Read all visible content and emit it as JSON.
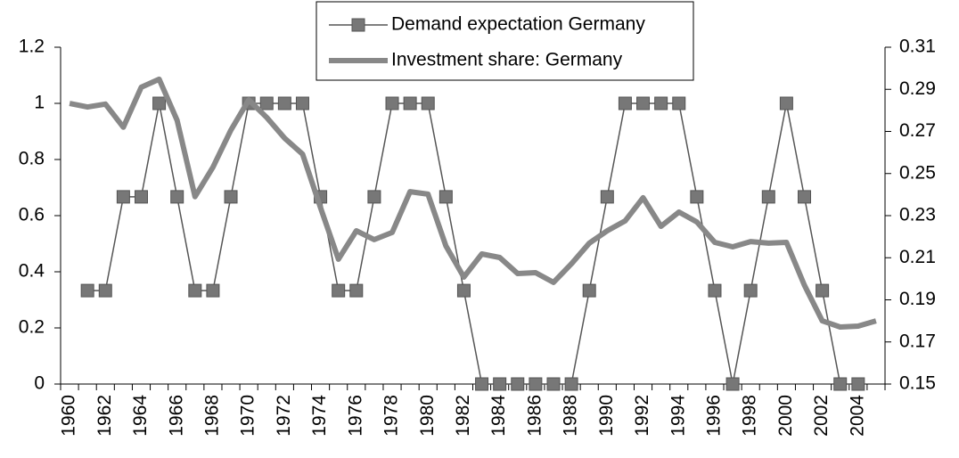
{
  "chart_data": {
    "type": "line",
    "categories": [
      "1960",
      null,
      "1962",
      null,
      "1964",
      null,
      "1966",
      null,
      "1968",
      null,
      "1970",
      null,
      "1972",
      null,
      "1974",
      null,
      "1976",
      null,
      "1978",
      null,
      "1980",
      null,
      "1982",
      null,
      "1984",
      null,
      "1986",
      null,
      "1988",
      null,
      "1990",
      null,
      "1992",
      null,
      "1994",
      null,
      "1996",
      null,
      "1998",
      null,
      "2000",
      null,
      "2002",
      null,
      "2004",
      null
    ],
    "series": [
      {
        "name": "Demand expectation Germany",
        "color": "#555555",
        "marker": "square",
        "values": [
          null,
          0.333,
          0.333,
          0.667,
          0.667,
          1,
          0.667,
          0.333,
          0.333,
          0.667,
          1,
          1,
          1,
          1,
          0.667,
          0.333,
          0.333,
          0.667,
          1,
          1,
          1,
          0.667,
          0.333,
          0,
          0,
          0,
          0,
          0,
          0,
          0.333,
          0.667,
          1,
          1,
          1,
          1,
          0.667,
          0.333,
          0,
          0.333,
          0.667,
          1,
          0.667,
          0.333,
          0,
          0,
          null
        ]
      },
      {
        "name": "Investment share: Germany",
        "color": "#888888",
        "axis": "y2",
        "values": [
          0.2833,
          0.2816,
          0.283,
          0.272,
          0.291,
          0.2948,
          0.2753,
          0.239,
          0.253,
          0.2706,
          0.285,
          0.2766,
          0.2668,
          0.2592,
          0.2338,
          0.2093,
          0.2228,
          0.2186,
          0.222,
          0.2414,
          0.2402,
          0.2156,
          0.2008,
          0.2118,
          0.2101,
          0.2025,
          0.2029,
          0.1983,
          0.2071,
          0.2169,
          0.2228,
          0.2275,
          0.2385,
          0.2249,
          0.2317,
          0.227,
          0.2173,
          0.2152,
          0.2177,
          0.2169,
          0.2173,
          0.197,
          0.18,
          0.1771,
          0.1775,
          0.18
        ]
      }
    ],
    "ylim": [
      0,
      1.2
    ],
    "yticks": [
      0,
      0.2,
      0.4,
      0.6,
      0.8,
      1,
      1.2
    ],
    "y2lim": [
      0.15,
      0.31
    ],
    "y2ticks": [
      0.15,
      0.17,
      0.19,
      0.21,
      0.23,
      0.25,
      0.27,
      0.29,
      0.31
    ],
    "grid": false,
    "legend": "top"
  }
}
